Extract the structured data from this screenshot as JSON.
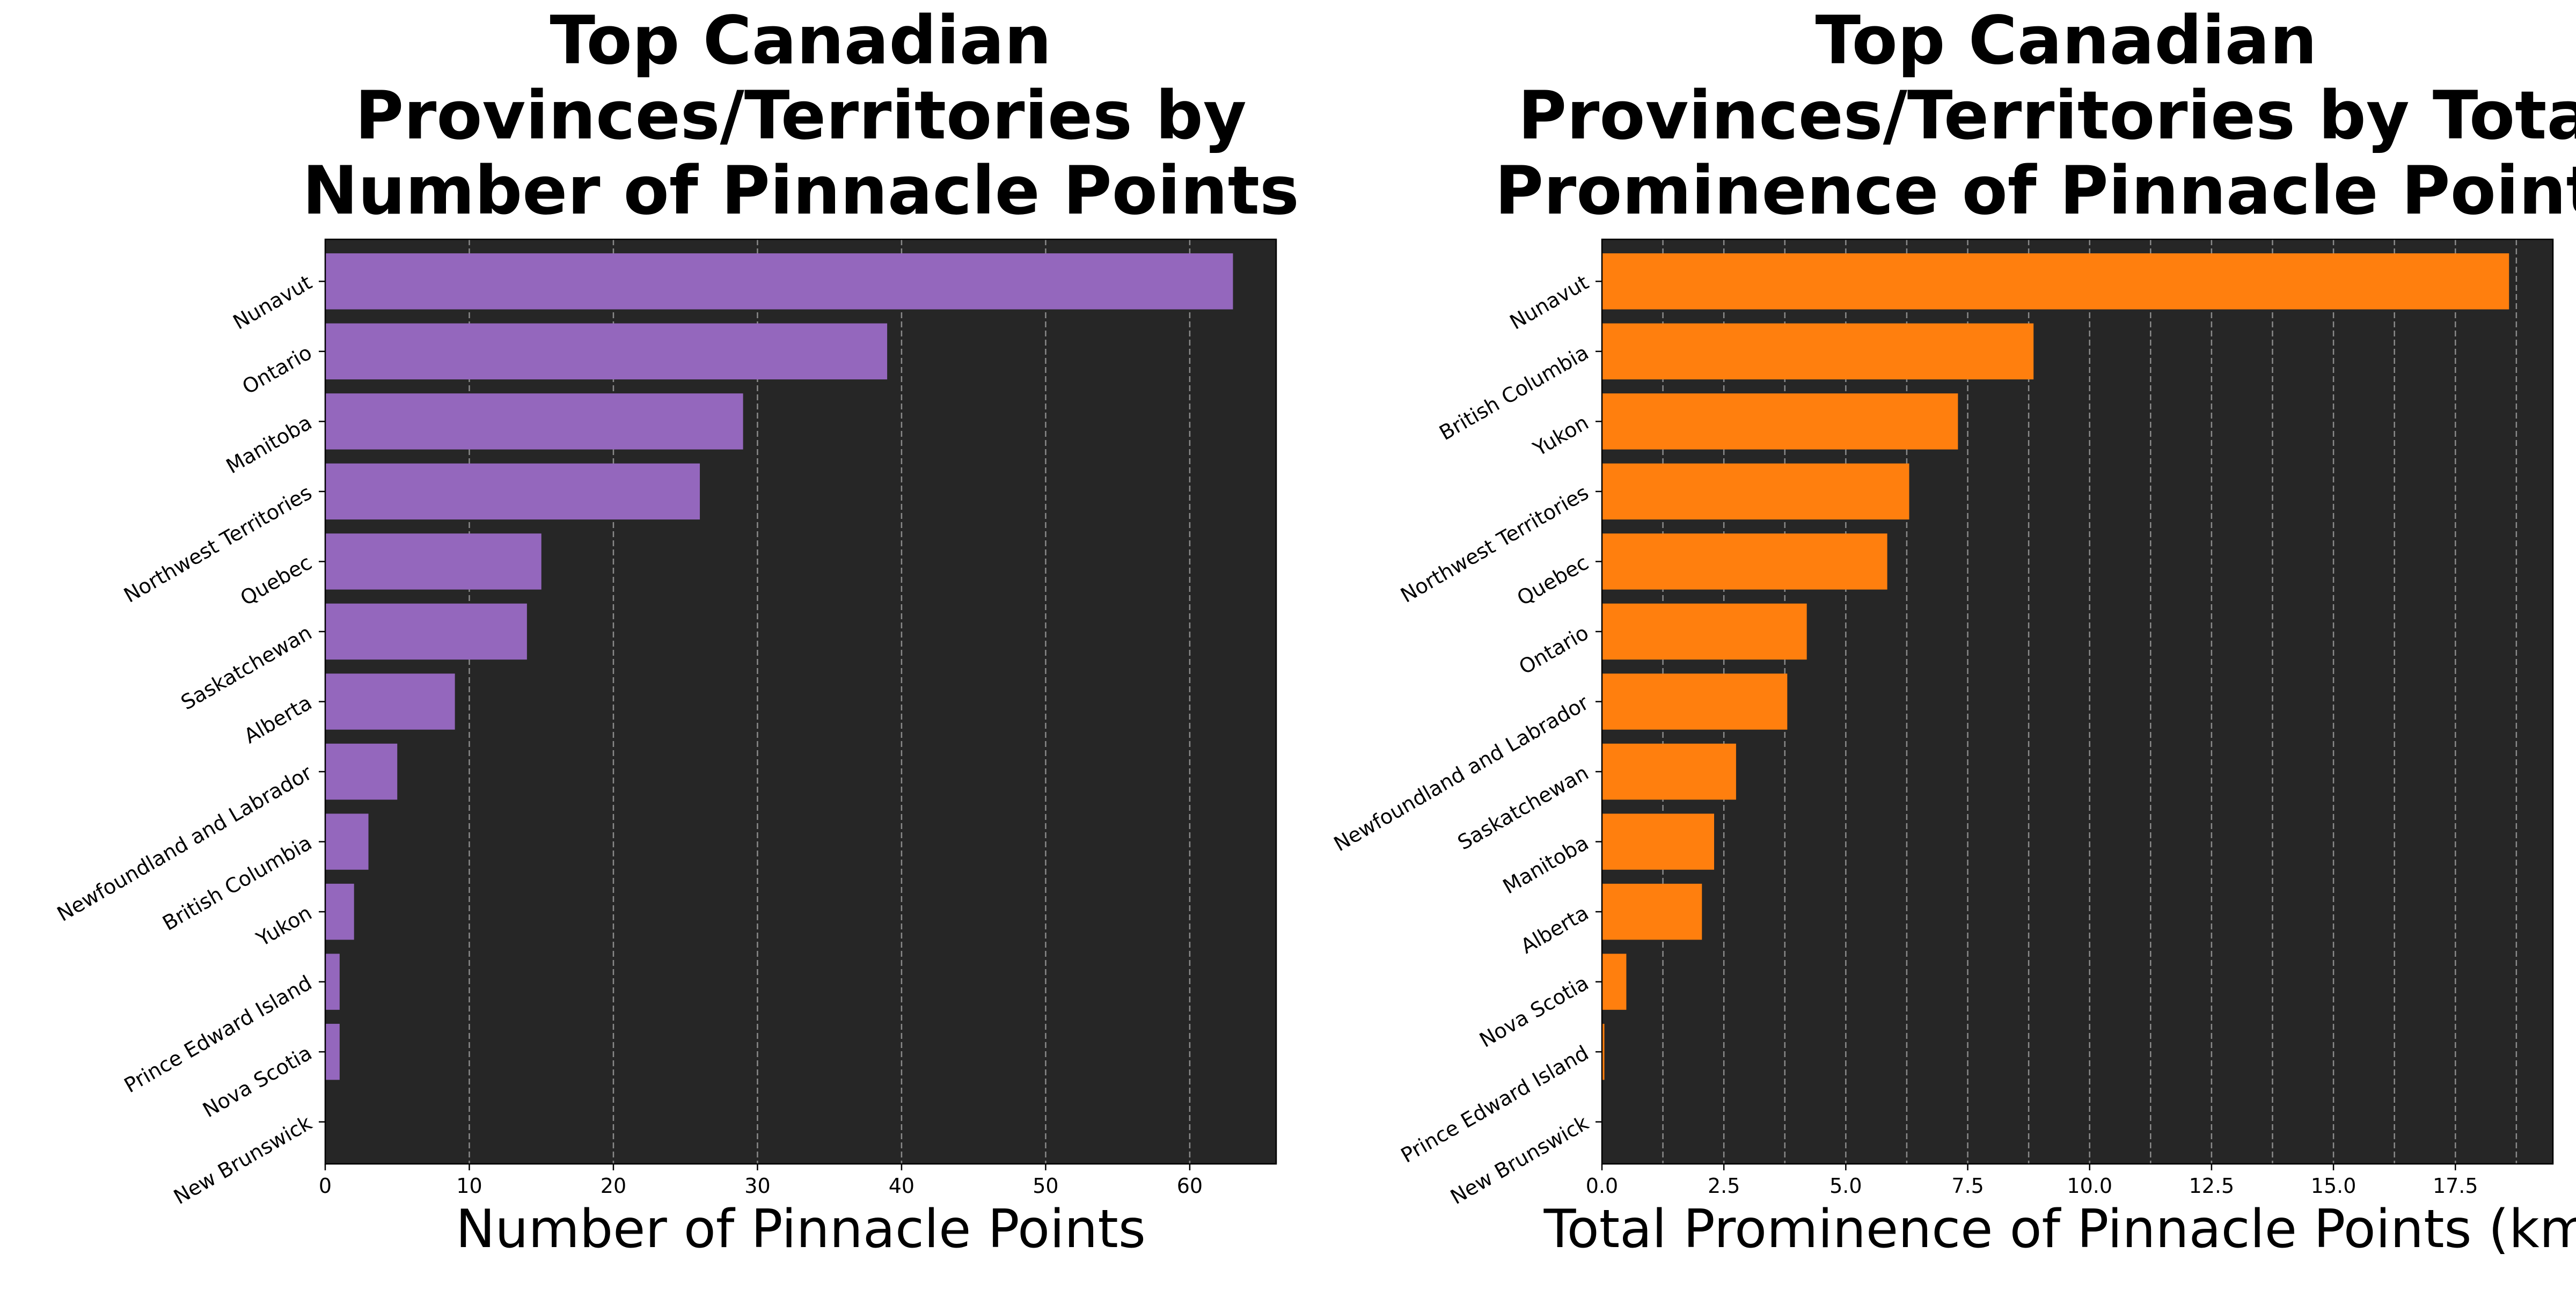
{
  "chart_data": [
    {
      "type": "bar",
      "orientation": "horizontal",
      "title": "Top Canadian Provinces/Territories by Number of Pinnacle Points",
      "title_lines": [
        "Top Canadian",
        "Provinces/Territories by",
        "Number of Pinnacle Points"
      ],
      "xlabel": "Number of Pinnacle Points",
      "ylabel": "",
      "categories": [
        "Nunavut",
        "Ontario",
        "Manitoba",
        "Northwest Territories",
        "Quebec",
        "Saskatchewan",
        "Alberta",
        "Newfoundland and Labrador",
        "British Columbia",
        "Yukon",
        "Prince Edward Island",
        "Nova Scotia",
        "New Brunswick"
      ],
      "values": [
        63,
        39,
        29,
        26,
        15,
        14,
        9,
        5,
        3,
        2,
        1,
        1,
        0
      ],
      "xlim": [
        0,
        66
      ],
      "xticks": [
        0,
        10,
        20,
        30,
        40,
        50,
        60
      ],
      "xtick_labels": [
        "0",
        "10",
        "20",
        "30",
        "40",
        "50",
        "60"
      ],
      "grid_x": [
        10,
        20,
        30,
        40,
        50,
        60
      ],
      "grid": true,
      "bar_color": "#9467bd",
      "background_color": "#262626",
      "legend": "none"
    },
    {
      "type": "bar",
      "orientation": "horizontal",
      "title": "Top Canadian Provinces/Territories by Total Prominence of Pinnacle Points",
      "title_lines": [
        "Top Canadian",
        "Provinces/Territories by Total",
        "Prominence of Pinnacle Points"
      ],
      "xlabel": "Total Prominence of Pinnacle Points (km)",
      "ylabel": "",
      "categories": [
        "Nunavut",
        "British Columbia",
        "Yukon",
        "Northwest Territories",
        "Quebec",
        "Ontario",
        "Newfoundland and Labrador",
        "Saskatchewan",
        "Manitoba",
        "Alberta",
        "Nova Scotia",
        "Prince Edward Island",
        "New Brunswick"
      ],
      "values": [
        18.6,
        8.85,
        7.3,
        6.3,
        5.85,
        4.2,
        3.8,
        2.75,
        2.3,
        2.05,
        0.5,
        0.05,
        0
      ],
      "xlim": [
        0,
        19.5
      ],
      "xticks": [
        0,
        2.5,
        5,
        7.5,
        10,
        12.5,
        15,
        17.5
      ],
      "xtick_labels": [
        "0.0",
        "2.5",
        "5.0",
        "7.5",
        "10.0",
        "12.5",
        "15.0",
        "17.5"
      ],
      "grid_x": [
        1.25,
        2.5,
        3.75,
        5,
        6.25,
        7.5,
        8.75,
        10,
        11.25,
        12.5,
        13.75,
        15,
        16.25,
        17.5,
        18.75
      ],
      "grid": true,
      "bar_color": "#ff7f0e",
      "background_color": "#262626",
      "legend": "none"
    }
  ]
}
